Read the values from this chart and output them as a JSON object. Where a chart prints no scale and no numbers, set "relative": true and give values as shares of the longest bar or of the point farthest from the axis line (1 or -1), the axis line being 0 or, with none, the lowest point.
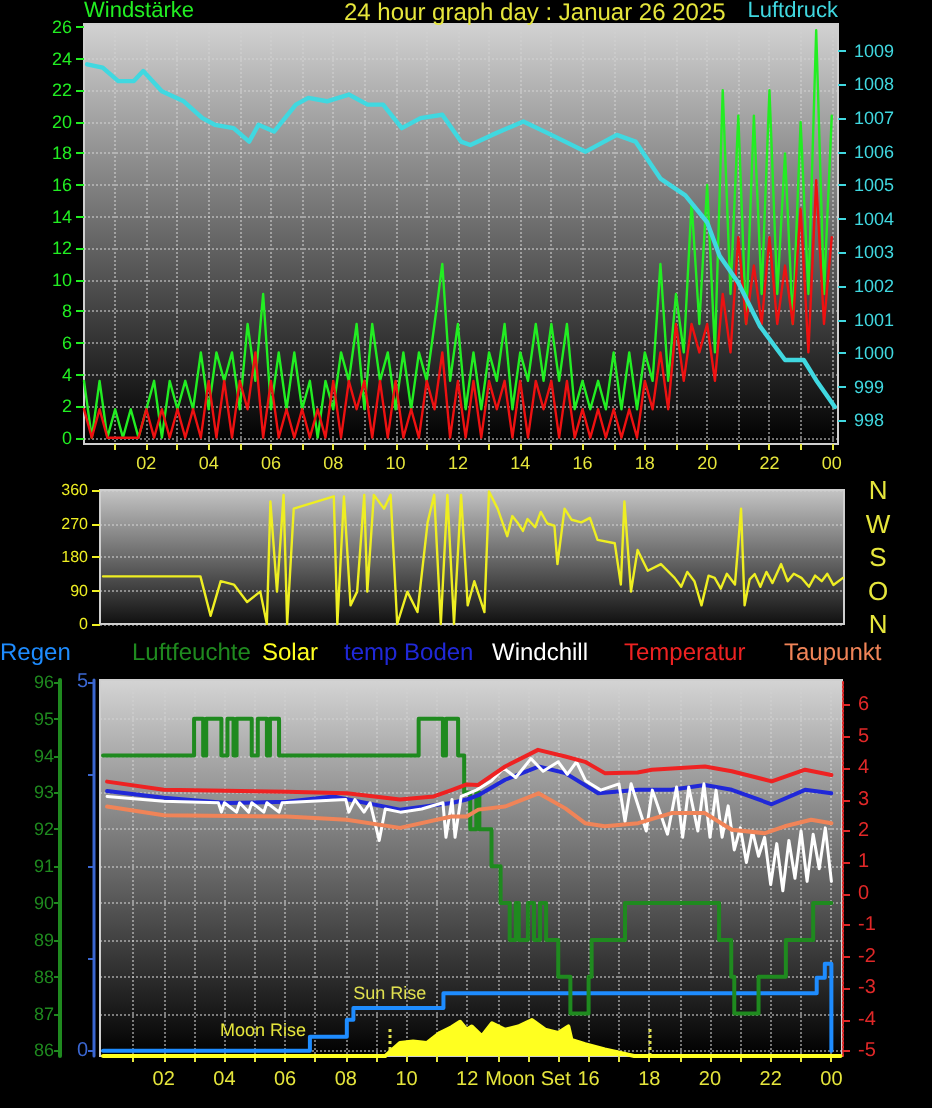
{
  "chart_data": [
    {
      "type": "line",
      "title": "24 hour graph day : Januar 26 2025",
      "ylabel": "Windstärke",
      "y2label": "Luftdruck",
      "x": [
        "2025-01-26T00:00",
        "2025-01-26T00:15",
        "2025-01-26T00:30",
        "2025-01-26T00:45",
        "2025-01-26T01:00",
        "2025-01-26T01:15",
        "2025-01-26T01:30",
        "2025-01-26T01:45",
        "2025-01-26T02:00",
        "2025-01-26T02:15",
        "2025-01-26T02:30",
        "2025-01-26T02:45",
        "2025-01-26T03:00",
        "2025-01-26T03:15",
        "2025-01-26T03:30",
        "2025-01-26T03:45",
        "2025-01-26T04:00",
        "2025-01-26T04:15",
        "2025-01-26T04:30",
        "2025-01-26T04:45",
        "2025-01-26T05:00",
        "2025-01-26T05:15",
        "2025-01-26T05:30",
        "2025-01-26T05:45",
        "2025-01-26T06:00",
        "2025-01-26T06:15",
        "2025-01-26T06:30",
        "2025-01-26T06:45",
        "2025-01-26T07:00",
        "2025-01-26T07:15",
        "2025-01-26T07:30",
        "2025-01-26T07:45",
        "2025-01-26T08:00",
        "2025-01-26T08:15",
        "2025-01-26T08:30",
        "2025-01-26T08:45",
        "2025-01-26T09:00",
        "2025-01-26T09:15",
        "2025-01-26T09:30",
        "2025-01-26T09:45",
        "2025-01-26T10:00",
        "2025-01-26T10:15",
        "2025-01-26T10:30",
        "2025-01-26T10:45",
        "2025-01-26T11:00",
        "2025-01-26T11:15",
        "2025-01-26T11:30",
        "2025-01-26T11:45",
        "2025-01-26T12:00",
        "2025-01-26T12:15",
        "2025-01-26T12:30",
        "2025-01-26T12:45",
        "2025-01-26T13:00",
        "2025-01-26T13:15",
        "2025-01-26T13:30",
        "2025-01-26T13:45",
        "2025-01-26T14:00",
        "2025-01-26T14:15",
        "2025-01-26T14:30",
        "2025-01-26T14:45",
        "2025-01-26T15:00",
        "2025-01-26T15:15",
        "2025-01-26T15:30",
        "2025-01-26T15:45",
        "2025-01-26T16:00",
        "2025-01-26T16:15",
        "2025-01-26T16:30",
        "2025-01-26T16:45",
        "2025-01-26T17:00",
        "2025-01-26T17:15",
        "2025-01-26T17:30",
        "2025-01-26T17:45",
        "2025-01-26T18:00",
        "2025-01-26T18:15",
        "2025-01-26T18:30",
        "2025-01-26T18:45",
        "2025-01-26T19:00",
        "2025-01-26T19:15",
        "2025-01-26T19:30",
        "2025-01-26T19:45",
        "2025-01-26T20:00",
        "2025-01-26T20:15",
        "2025-01-26T20:30",
        "2025-01-26T20:45",
        "2025-01-26T21:00",
        "2025-01-26T21:15",
        "2025-01-26T21:30",
        "2025-01-26T21:45",
        "2025-01-26T22:00",
        "2025-01-26T22:15",
        "2025-01-26T22:30",
        "2025-01-26T22:45",
        "2025-01-26T23:00",
        "2025-01-26T23:15",
        "2025-01-26T23:30",
        "2025-01-26T23:45",
        "2025-01-27T00:00"
      ],
      "xlim": [
        "2025-01-26T00:00",
        "2025-01-27T00:12"
      ],
      "xticks": [
        {
          "value": "2025-01-26T01:00",
          "label": null
        },
        {
          "value": "2025-01-26T02:00",
          "label": "02"
        },
        {
          "value": "2025-01-26T03:00",
          "label": null
        },
        {
          "value": "2025-01-26T04:00",
          "label": "04"
        },
        {
          "value": "2025-01-26T05:00",
          "label": null
        },
        {
          "value": "2025-01-26T06:00",
          "label": "06"
        },
        {
          "value": "2025-01-26T07:00",
          "label": null
        },
        {
          "value": "2025-01-26T08:00",
          "label": "08"
        },
        {
          "value": "2025-01-26T09:00",
          "label": null
        },
        {
          "value": "2025-01-26T10:00",
          "label": "10"
        },
        {
          "value": "2025-01-26T11:00",
          "label": null
        },
        {
          "value": "2025-01-26T12:00",
          "label": "12"
        },
        {
          "value": "2025-01-26T13:00",
          "label": null
        },
        {
          "value": "2025-01-26T14:00",
          "label": "14"
        },
        {
          "value": "2025-01-26T15:00",
          "label": null
        },
        {
          "value": "2025-01-26T16:00",
          "label": "16"
        },
        {
          "value": "2025-01-26T17:00",
          "label": null
        },
        {
          "value": "2025-01-26T18:00",
          "label": "18"
        },
        {
          "value": "2025-01-26T19:00",
          "label": null
        },
        {
          "value": "2025-01-26T20:00",
          "label": "20"
        },
        {
          "value": "2025-01-26T21:00",
          "label": null
        },
        {
          "value": "2025-01-26T22:00",
          "label": "22"
        },
        {
          "value": "2025-01-26T23:00",
          "label": null
        },
        {
          "value": "2025-01-27T00:00",
          "label": "00"
        }
      ],
      "ylim": [
        -0.4,
        26.2
      ],
      "yticks": [
        0,
        2,
        4,
        6,
        8,
        10,
        12,
        14,
        16,
        18,
        20,
        22,
        24,
        26
      ],
      "y2lim": [
        997.3,
        1009.8
      ],
      "y2ticks": [
        998,
        999,
        1000,
        1001,
        1002,
        1003,
        1004,
        1005,
        1006,
        1007,
        1008,
        1009
      ],
      "grid": true,
      "series": [
        {
          "color": "#22ee22",
          "values": [
            3.6,
            0,
            3.6,
            0,
            1.8,
            0,
            1.8,
            0,
            1.8,
            3.6,
            0,
            3.6,
            1.8,
            3.6,
            1.8,
            5.4,
            1.8,
            5.4,
            3.6,
            5.4,
            1.8,
            7.2,
            3.6,
            9.1,
            1.8,
            5.4,
            1.8,
            5.4,
            1.8,
            3.6,
            0,
            3.6,
            1.8,
            5.4,
            3.6,
            7.2,
            1.8,
            7.2,
            3.6,
            5.4,
            1.8,
            5.4,
            1.8,
            5.4,
            3.6,
            7.2,
            11,
            3.6,
            7.2,
            1.8,
            5.4,
            1.8,
            5.4,
            3.6,
            7.2,
            1.8,
            5.4,
            3.6,
            7.2,
            3.6,
            7.2,
            3.6,
            7.2,
            1.8,
            3.6,
            1.8,
            3.6,
            1.8,
            5.4,
            1.8,
            5.4,
            1.8,
            5.4,
            3.6,
            11,
            3.6,
            9.1,
            5.4,
            14.9,
            7.2,
            16,
            5.4,
            22,
            9.1,
            20.4,
            7.2,
            20.4,
            9.1,
            22,
            9.1,
            18,
            7.2,
            20,
            9.1,
            25.8,
            9.1,
            20.4
          ]
        },
        {
          "color": "#ee1111",
          "values": [
            1.8,
            0,
            1.8,
            0,
            0,
            0,
            0,
            0,
            1.8,
            0,
            1.8,
            0,
            1.8,
            0,
            1.8,
            0,
            3.6,
            0,
            3.6,
            0,
            3.6,
            1.8,
            5.4,
            0,
            3.6,
            0,
            1.8,
            0,
            1.8,
            0,
            1.8,
            0,
            3.6,
            0,
            3.6,
            1.8,
            3.6,
            0,
            3.6,
            0,
            3.6,
            0,
            1.8,
            0,
            3.6,
            1.8,
            5.4,
            0,
            3.6,
            0,
            3.6,
            0,
            3.6,
            1.8,
            3.6,
            0,
            3.6,
            0,
            3.6,
            1.8,
            3.6,
            0,
            3.6,
            0,
            1.8,
            0,
            1.8,
            0,
            1.8,
            0,
            1.8,
            0,
            3.6,
            1.8,
            5.4,
            1.8,
            7.2,
            3.6,
            7.2,
            5.4,
            7.2,
            3.6,
            9.1,
            5.4,
            12.7,
            7.2,
            10.9,
            7.2,
            12.7,
            7.2,
            10.9,
            7.2,
            14.5,
            5.4,
            16.3,
            7.2,
            12.7
          ]
        },
        {
          "color": "#40d8e0",
          "axis": "y2",
          "x": [
            "2025-01-26T00:06",
            "2025-01-26T00:36",
            "2025-01-26T01:06",
            "2025-01-26T01:36",
            "2025-01-26T01:54",
            "2025-01-26T02:30",
            "2025-01-26T03:12",
            "2025-01-26T03:48",
            "2025-01-26T04:12",
            "2025-01-26T04:48",
            "2025-01-26T05:18",
            "2025-01-26T05:36",
            "2025-01-26T06:06",
            "2025-01-26T06:48",
            "2025-01-26T07:12",
            "2025-01-26T07:48",
            "2025-01-26T08:30",
            "2025-01-26T09:06",
            "2025-01-26T09:36",
            "2025-01-26T10:12",
            "2025-01-26T10:48",
            "2025-01-26T11:30",
            "2025-01-26T12:06",
            "2025-01-26T12:24",
            "2025-01-26T13:06",
            "2025-01-26T14:06",
            "2025-01-26T15:00",
            "2025-01-26T16:06",
            "2025-01-26T17:06",
            "2025-01-26T17:42",
            "2025-01-26T18:30",
            "2025-01-26T19:18",
            "2025-01-26T20:00",
            "2025-01-26T20:24",
            "2025-01-26T21:00",
            "2025-01-26T21:42",
            "2025-01-26T22:30",
            "2025-01-26T23:06",
            "2025-01-26T23:30",
            "2025-01-27T00:06"
          ],
          "values": [
            1008.6,
            1008.5,
            1008.1,
            1008.1,
            1008.4,
            1007.8,
            1007.5,
            1007.0,
            1006.8,
            1006.7,
            1006.3,
            1006.8,
            1006.6,
            1007.4,
            1007.6,
            1007.5,
            1007.7,
            1007.4,
            1007.4,
            1006.7,
            1007.0,
            1007.1,
            1006.3,
            1006.2,
            1006.5,
            1006.9,
            1006.5,
            1006.0,
            1006.5,
            1006.3,
            1005.2,
            1004.7,
            1003.9,
            1002.9,
            1002.1,
            1000.8,
            999.8,
            999.8,
            999.2,
            998.4
          ]
        }
      ]
    },
    {
      "type": "line",
      "x": [
        "2025-01-26T00:00",
        "2025-01-26T03:12",
        "2025-01-26T03:32",
        "2025-01-26T03:52",
        "2025-01-26T04:18",
        "2025-01-26T04:44",
        "2025-01-26T05:10",
        "2025-01-26T05:23",
        "2025-01-26T05:30",
        "2025-01-26T05:43",
        "2025-01-26T05:56",
        "2025-01-26T06:03",
        "2025-01-26T06:16",
        "2025-01-26T07:35",
        "2025-01-26T07:42",
        "2025-01-26T07:55",
        "2025-01-26T08:08",
        "2025-01-26T08:21",
        "2025-01-26T08:35",
        "2025-01-26T08:41",
        "2025-01-26T08:54",
        "2025-01-26T09:14",
        "2025-01-26T09:27",
        "2025-01-26T09:40",
        "2025-01-26T10:00",
        "2025-01-26T10:20",
        "2025-01-26T10:40",
        "2025-01-26T10:53",
        "2025-01-26T11:06",
        "2025-01-26T11:19",
        "2025-01-26T11:32",
        "2025-01-26T11:46",
        "2025-01-26T11:59",
        "2025-01-26T12:12",
        "2025-01-26T12:32",
        "2025-01-26T12:41",
        "2025-01-26T12:58",
        "2025-01-26T13:17",
        "2025-01-26T13:27",
        "2025-01-26T13:37",
        "2025-01-26T13:48",
        "2025-01-26T13:57",
        "2025-01-26T14:12",
        "2025-01-26T14:23",
        "2025-01-26T14:36",
        "2025-01-26T14:50",
        "2025-01-26T14:56",
        "2025-01-26T15:10",
        "2025-01-26T15:24",
        "2025-01-26T15:43",
        "2025-01-26T16:00",
        "2025-01-26T16:15",
        "2025-01-26T16:49",
        "2025-01-26T17:01",
        "2025-01-26T17:08",
        "2025-01-26T17:21",
        "2025-01-26T17:34",
        "2025-01-26T17:54",
        "2025-01-26T18:20",
        "2025-01-26T18:47",
        "2025-01-26T19:00",
        "2025-01-26T19:12",
        "2025-01-26T19:26",
        "2025-01-26T19:40",
        "2025-01-26T19:54",
        "2025-01-26T20:06",
        "2025-01-26T20:18",
        "2025-01-26T20:30",
        "2025-01-26T20:46",
        "2025-01-26T20:58",
        "2025-01-26T21:05",
        "2025-01-26T21:15",
        "2025-01-26T21:25",
        "2025-01-26T21:36",
        "2025-01-26T21:48",
        "2025-01-26T22:00",
        "2025-01-26T22:17",
        "2025-01-26T22:30",
        "2025-01-26T22:42",
        "2025-01-26T22:57",
        "2025-01-26T23:12",
        "2025-01-26T23:24",
        "2025-01-26T23:37",
        "2025-01-26T23:48",
        "2025-01-27T00:00",
        "2025-01-27T00:19"
      ],
      "xlim": [
        "2025-01-25T23:54",
        "2025-01-27T00:21"
      ],
      "ylim": [
        0,
        360
      ],
      "yticks": [
        0,
        90,
        180,
        270,
        360
      ],
      "grid": "y",
      "tick_labels": "y",
      "annotations": [
        "N",
        "W",
        "S",
        "O",
        "N"
      ],
      "series": [
        {
          "color": "#eeee22",
          "values": [
            128,
            128,
            22,
            115,
            106,
            59,
            87,
            0,
            329,
            87,
            347,
            0,
            310,
            343,
            0,
            343,
            50,
            87,
            347,
            87,
            347,
            310,
            347,
            0,
            87,
            32,
            273,
            347,
            0,
            347,
            0,
            347,
            50,
            115,
            32,
            356,
            310,
            236,
            290,
            273,
            250,
            282,
            260,
            301,
            270,
            264,
            161,
            310,
            280,
            273,
            285,
            226,
            217,
            106,
            329,
            87,
            199,
            143,
            161,
            124,
            100,
            140,
            115,
            50,
            130,
            124,
            95,
            135,
            106,
            310,
            50,
            120,
            134,
            100,
            140,
            110,
            161,
            115,
            135,
            124,
            100,
            130,
            115,
            135,
            105,
            124
          ]
        }
      ]
    },
    {
      "type": "line",
      "legend": "top",
      "xlim": [
        "2025-01-25T23:54",
        "2025-01-27T00:21"
      ],
      "xticks": [
        {
          "value": "2025-01-26T01:00",
          "label": null
        },
        {
          "value": "2025-01-26T02:00",
          "label": "02"
        },
        {
          "value": "2025-01-26T03:00",
          "label": null
        },
        {
          "value": "2025-01-26T04:00",
          "label": "04"
        },
        {
          "value": "2025-01-26T05:00",
          "label": null
        },
        {
          "value": "2025-01-26T06:00",
          "label": "06"
        },
        {
          "value": "2025-01-26T07:00",
          "label": null
        },
        {
          "value": "2025-01-26T08:00",
          "label": "08"
        },
        {
          "value": "2025-01-26T09:00",
          "label": null
        },
        {
          "value": "2025-01-26T10:00",
          "label": "10"
        },
        {
          "value": "2025-01-26T11:00",
          "label": null
        },
        {
          "value": "2025-01-26T12:00",
          "label": "12"
        },
        {
          "value": "2025-01-26T13:00",
          "label": null
        },
        {
          "value": "2025-01-26T14:00",
          "label": null
        },
        {
          "value": "2025-01-26T15:00",
          "label": null
        },
        {
          "value": "2025-01-26T16:00",
          "label": "16"
        },
        {
          "value": "2025-01-26T17:00",
          "label": null
        },
        {
          "value": "2025-01-26T18:00",
          "label": "18"
        },
        {
          "value": "2025-01-26T19:00",
          "label": null
        },
        {
          "value": "2025-01-26T20:00",
          "label": "20"
        },
        {
          "value": "2025-01-26T21:00",
          "label": null
        },
        {
          "value": "2025-01-26T22:00",
          "label": "22"
        },
        {
          "value": "2025-01-26T23:00",
          "label": null
        },
        {
          "value": "2025-01-27T00:00",
          "label": "00"
        }
      ],
      "ylim": [
        85.85,
        96.05
      ],
      "yticks": [
        86,
        87,
        88,
        89,
        90,
        91,
        92,
        93,
        94,
        95,
        96
      ],
      "y2lim": [
        -5.15,
        6.8
      ],
      "y2ticks": [
        -5,
        -4,
        -3,
        -2,
        -1,
        0,
        1,
        2,
        3,
        4,
        5,
        6
      ],
      "y3lim": [
        -0.07,
        5.03
      ],
      "y3ticks": [
        0,
        {
          "value": 1.25,
          "label": null
        },
        {
          "value": 2.5,
          "label": null
        },
        {
          "value": 3.75,
          "label": null
        },
        5
      ],
      "grid": true,
      "series": [
        {
          "name": "Regen",
          "type": "step",
          "axis": "y3",
          "color": "#1e8cff",
          "x": [
            "2025-01-26T00:00",
            "2025-01-26T06:49",
            "2025-01-26T08:02",
            "2025-01-26T08:15",
            "2025-01-26T11:13",
            "2025-01-26T23:31",
            "2025-01-26T23:47",
            "2025-01-27T00:00"
          ],
          "values": [
            0,
            0.19,
            0.42,
            0.58,
            0.78,
            0.99,
            1.18,
            0
          ]
        },
        {
          "name": "Luftfeuchte",
          "type": "step",
          "color": "#1f8a1f",
          "x": [
            "2025-01-26T00:00",
            "2025-01-26T03:00",
            "2025-01-26T03:18",
            "2025-01-26T03:24",
            "2025-01-26T03:54",
            "2025-01-26T04:06",
            "2025-01-26T04:18",
            "2025-01-26T04:24",
            "2025-01-26T04:54",
            "2025-01-26T05:06",
            "2025-01-26T05:24",
            "2025-01-26T05:30",
            "2025-01-26T05:48",
            "2025-01-26T10:24",
            "2025-01-26T11:12",
            "2025-01-26T11:18",
            "2025-01-26T11:42",
            "2025-01-26T11:54",
            "2025-01-26T12:06",
            "2025-01-26T12:18",
            "2025-01-26T12:24",
            "2025-01-26T12:48",
            "2025-01-26T13:06",
            "2025-01-26T13:24",
            "2025-01-26T13:36",
            "2025-01-26T13:42",
            "2025-01-26T14:00",
            "2025-01-26T14:12",
            "2025-01-26T14:24",
            "2025-01-26T14:36",
            "2025-01-26T15:00",
            "2025-01-26T15:24",
            "2025-01-26T16:00",
            "2025-01-26T16:06",
            "2025-01-26T17:12",
            "2025-01-26T20:18",
            "2025-01-26T20:42",
            "2025-01-26T20:48",
            "2025-01-26T21:36",
            "2025-01-26T22:30",
            "2025-01-26T23:24",
            "2025-01-27T00:00"
          ],
          "values": [
            94,
            95,
            94,
            95,
            94,
            95,
            94,
            95,
            94,
            95,
            94,
            95,
            94,
            95,
            94,
            95,
            94,
            93,
            92,
            93,
            92,
            91,
            90,
            89,
            90,
            89,
            90,
            89,
            90,
            89,
            88,
            87,
            88,
            89,
            90,
            89,
            88,
            87,
            88,
            89,
            90,
            90
          ]
        },
        {
          "name": "temp Boden",
          "axis": "y2",
          "color": "#2028d8",
          "x": [
            "2025-01-26T00:08",
            "2025-01-26T02:00",
            "2025-01-26T04:05",
            "2025-01-26T06:03",
            "2025-01-26T07:35",
            "2025-01-26T09:47",
            "2025-01-26T11:29",
            "2025-01-26T11:59",
            "2025-01-26T12:22",
            "2025-01-26T13:15",
            "2025-01-26T14:21",
            "2025-01-26T15:14",
            "2025-01-26T16:19",
            "2025-01-26T17:38",
            "2025-01-26T18:44",
            "2025-01-26T19:50",
            "2025-01-26T20:43",
            "2025-01-26T22:02",
            "2025-01-26T23:08",
            "2025-01-27T00:00"
          ],
          "values": [
            3.27,
            3.06,
            2.89,
            2.93,
            3.1,
            2.68,
            2.89,
            3.0,
            3.14,
            3.63,
            4.05,
            3.84,
            3.2,
            3.31,
            3.31,
            3.46,
            3.31,
            2.85,
            3.31,
            3.2
          ]
        },
        {
          "name": "Windchill",
          "axis": "y2",
          "color": "#ffffff",
          "x": [
            "2025-01-26T00:08",
            "2025-01-26T02:00",
            "2025-01-26T03:48",
            "2025-01-26T03:54",
            "2025-01-26T04:00",
            "2025-01-26T04:24",
            "2025-01-26T04:30",
            "2025-01-26T04:48",
            "2025-01-26T04:54",
            "2025-01-26T05:18",
            "2025-01-26T05:24",
            "2025-01-26T05:48",
            "2025-01-26T05:54",
            "2025-01-26T08:00",
            "2025-01-26T08:06",
            "2025-01-26T08:18",
            "2025-01-26T08:36",
            "2025-01-26T08:48",
            "2025-01-26T09:06",
            "2025-01-26T09:18",
            "2025-01-26T09:48",
            "2025-01-26T10:30",
            "2025-01-26T11:12",
            "2025-01-26T11:18",
            "2025-01-26T11:30",
            "2025-01-26T11:36",
            "2025-01-26T11:48",
            "2025-01-26T12:18",
            "2025-01-26T12:48",
            "2025-01-26T13:12",
            "2025-01-26T13:36",
            "2025-01-26T14:06",
            "2025-01-26T14:30",
            "2025-01-26T15:00",
            "2025-01-26T15:18",
            "2025-01-26T15:36",
            "2025-01-26T15:54",
            "2025-01-26T16:24",
            "2025-01-26T17:00",
            "2025-01-26T17:12",
            "2025-01-26T17:24",
            "2025-01-26T17:54",
            "2025-01-26T18:06",
            "2025-01-26T18:36",
            "2025-01-26T18:54",
            "2025-01-26T19:06",
            "2025-01-26T19:18",
            "2025-01-26T19:36",
            "2025-01-26T19:48",
            "2025-01-26T20:00",
            "2025-01-26T20:12",
            "2025-01-26T20:24",
            "2025-01-26T20:36",
            "2025-01-26T20:48",
            "2025-01-26T21:00",
            "2025-01-26T21:12",
            "2025-01-26T21:24",
            "2025-01-26T21:36",
            "2025-01-26T21:48",
            "2025-01-26T22:00",
            "2025-01-26T22:12",
            "2025-01-26T22:24",
            "2025-01-26T22:36",
            "2025-01-26T22:48",
            "2025-01-26T23:00",
            "2025-01-26T23:12",
            "2025-01-26T23:24",
            "2025-01-26T23:36",
            "2025-01-26T23:48",
            "2025-01-27T00:00"
          ],
          "values": [
            3.1,
            2.95,
            2.9,
            2.6,
            2.9,
            2.6,
            2.9,
            2.6,
            2.9,
            2.6,
            2.9,
            2.6,
            2.9,
            3.0,
            2.6,
            3.0,
            2.6,
            2.9,
            1.7,
            2.7,
            2.6,
            2.7,
            2.9,
            1.8,
            3.0,
            1.8,
            3.1,
            3.3,
            3.6,
            4.0,
            3.7,
            4.3,
            3.9,
            4.2,
            3.8,
            4.2,
            3.6,
            3.3,
            3.5,
            2.3,
            3.5,
            2.0,
            3.3,
            1.9,
            3.4,
            1.8,
            3.4,
            2.0,
            3.5,
            1.8,
            3.3,
            1.8,
            2.8,
            1.4,
            2.1,
            1.0,
            2.0,
            1.2,
            1.8,
            0.3,
            1.6,
            0.1,
            1.7,
            0.5,
            2.0,
            0.4,
            1.9,
            0.8,
            2.1,
            0.4
          ]
        },
        {
          "name": "Temperatur",
          "axis": "y2",
          "color": "#ee2222",
          "x": [
            "2025-01-26T00:08",
            "2025-01-26T02:00",
            "2025-01-26T06:03",
            "2025-01-26T08:02",
            "2025-01-26T09:47",
            "2025-01-26T10:54",
            "2025-01-26T11:29",
            "2025-01-26T11:59",
            "2025-01-26T12:21",
            "2025-01-26T13:15",
            "2025-01-26T14:20",
            "2025-01-26T15:14",
            "2025-01-26T15:53",
            "2025-01-26T16:32",
            "2025-01-26T17:37",
            "2025-01-26T18:05",
            "2025-01-26T19:50",
            "2025-01-26T20:43",
            "2025-01-26T22:02",
            "2025-01-26T23:08",
            "2025-01-27T00:00"
          ],
          "values": [
            3.57,
            3.31,
            3.25,
            3.2,
            3.0,
            3.1,
            3.3,
            3.48,
            3.46,
            4.05,
            4.58,
            4.37,
            4.2,
            3.84,
            3.86,
            3.95,
            4.05,
            3.9,
            3.58,
            3.95,
            3.78
          ]
        },
        {
          "name": "Taupunkt",
          "axis": "y2",
          "color": "#f08458",
          "x": [
            "2025-01-26T00:08",
            "2025-01-26T02:00",
            "2025-01-26T06:03",
            "2025-01-26T08:02",
            "2025-01-26T09:47",
            "2025-01-26T11:29",
            "2025-01-26T11:59",
            "2025-01-26T12:22",
            "2025-01-26T13:15",
            "2025-01-26T14:21",
            "2025-01-26T15:14",
            "2025-01-26T15:53",
            "2025-01-26T16:32",
            "2025-01-26T17:38",
            "2025-01-26T18:44",
            "2025-01-26T19:50",
            "2025-01-26T20:43",
            "2025-01-26T21:49",
            "2025-01-26T22:28",
            "2025-01-26T23:20",
            "2025-01-27T00:00"
          ],
          "values": [
            2.78,
            2.5,
            2.46,
            2.36,
            2.1,
            2.46,
            2.46,
            2.68,
            2.78,
            3.2,
            2.72,
            2.25,
            2.15,
            2.25,
            2.57,
            2.57,
            2.04,
            1.93,
            2.15,
            2.36,
            2.25
          ]
        }
      ],
      "ref_lines": [
        {
          "axis": "x",
          "value": "2025-01-26T09:27",
          "label": "Sun Rise",
          "color": "#e0e050",
          "line_style": "dotted"
        },
        {
          "axis": "x",
          "value": "2025-01-26T18:02",
          "color": "#e0e050",
          "line_style": "dotted"
        }
      ],
      "annotations": [
        "Moon Rise",
        "Moon Set"
      ]
    },
    {
      "type": "area",
      "relative": true,
      "legend": "top",
      "tick_labels": false,
      "xlim": [
        "2025-01-25T23:54",
        "2025-01-27T00:21"
      ],
      "x": [
        "2025-01-26T00:00",
        "2025-01-26T09:18",
        "2025-01-26T09:47",
        "2025-01-26T10:13",
        "2025-01-26T10:40",
        "2025-01-26T11:06",
        "2025-01-26T11:29",
        "2025-01-26T11:46",
        "2025-01-26T11:59",
        "2025-01-26T12:09",
        "2025-01-26T12:29",
        "2025-01-26T12:49",
        "2025-01-26T13:15",
        "2025-01-26T13:41",
        "2025-01-26T14:08",
        "2025-01-26T14:34",
        "2025-01-26T15:00",
        "2025-01-26T15:20",
        "2025-01-26T15:26",
        "2025-01-26T15:53",
        "2025-01-26T16:32",
        "2025-01-26T16:59",
        "2025-01-26T17:30",
        "2025-01-27T00:18"
      ],
      "series": [
        {
          "name": "Solar",
          "color": "#ffff20",
          "values": [
            0,
            0,
            0.36,
            0.4,
            0.36,
            0.64,
            0.8,
            0.95,
            0.73,
            0.82,
            0.55,
            0.91,
            0.73,
            0.82,
            1,
            0.73,
            0.64,
            0.82,
            0.45,
            0.33,
            0.18,
            0.1,
            0,
            0
          ]
        }
      ]
    }
  ]
}
